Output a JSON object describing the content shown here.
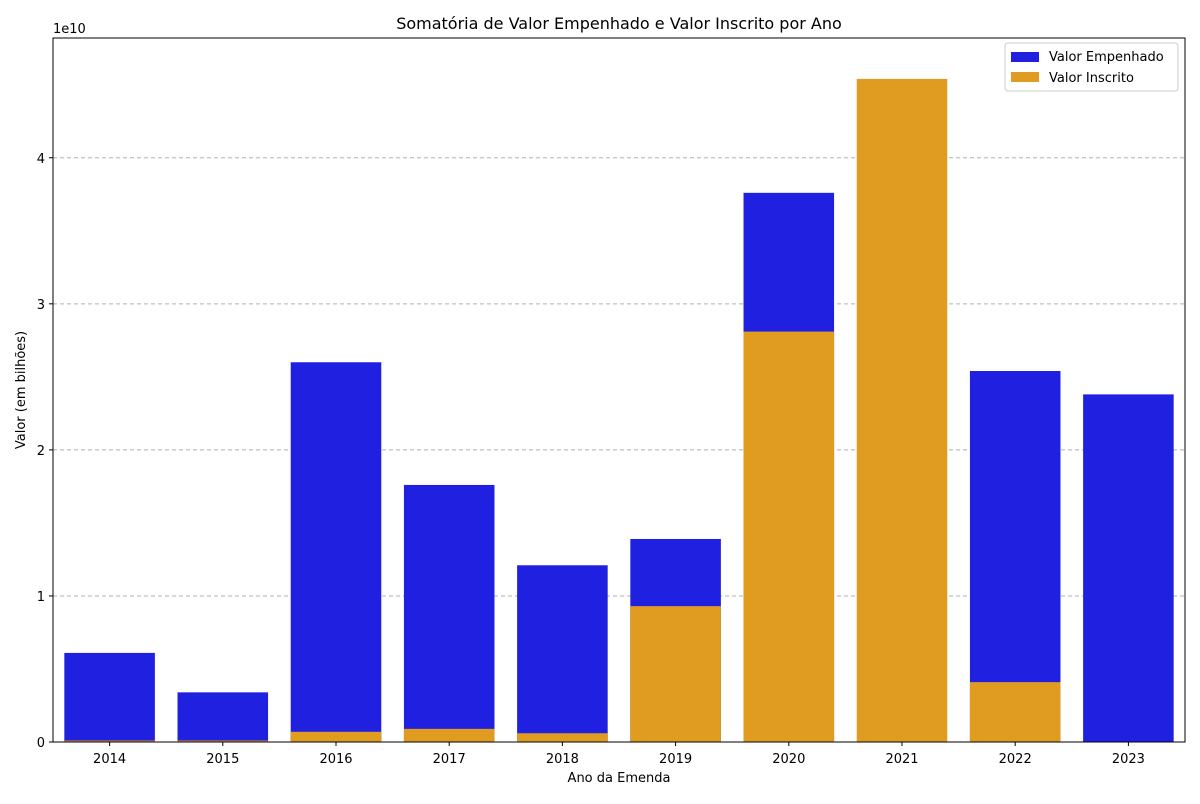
{
  "chart_data": {
    "type": "bar",
    "title": "Somatória de Valor Empenhado e Valor Inscrito por Ano",
    "xlabel": "Ano da Emenda",
    "ylabel": "Valor (em bilhões)",
    "y_scale_label": "1e10",
    "categories": [
      "2014",
      "2015",
      "2016",
      "2017",
      "2018",
      "2019",
      "2020",
      "2021",
      "2022",
      "2023"
    ],
    "y_ticks": [
      0,
      1,
      2,
      3,
      4
    ],
    "y_tick_labels": [
      "0",
      "1",
      "2",
      "3",
      "4"
    ],
    "ylim": [
      0,
      4.82
    ],
    "series": [
      {
        "name": "Valor Empenhado",
        "color": "#2020e0",
        "values": [
          0.61,
          0.34,
          2.6,
          1.76,
          1.21,
          1.39,
          3.76,
          0,
          2.54,
          2.38
        ]
      },
      {
        "name": "Valor Inscrito",
        "color": "#e09c20",
        "values": [
          0.01,
          0.01,
          0.07,
          0.09,
          0.06,
          0.93,
          2.81,
          4.54,
          0.41,
          0
        ]
      }
    ],
    "legend_position": "top-right",
    "grid": "y-dashed",
    "overlay": true
  }
}
